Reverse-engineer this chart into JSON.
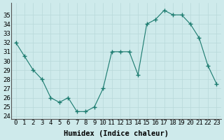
{
  "x": [
    0,
    1,
    2,
    3,
    4,
    5,
    6,
    7,
    8,
    9,
    10,
    11,
    12,
    13,
    14,
    15,
    16,
    17,
    18,
    19,
    20,
    21,
    22,
    23
  ],
  "y": [
    32,
    30.5,
    29,
    28,
    26,
    25.5,
    26,
    24.5,
    24.5,
    25,
    27,
    31,
    31,
    31,
    28.5,
    34,
    34.5,
    35.5,
    35,
    35,
    34,
    32.5,
    29.5,
    27.5
  ],
  "xlabel": "Humidex (Indice chaleur)",
  "ylim": [
    24,
    36
  ],
  "yticks": [
    24,
    25,
    26,
    27,
    28,
    29,
    30,
    31,
    32,
    33,
    34,
    35
  ],
  "xticks": [
    0,
    1,
    2,
    3,
    4,
    5,
    6,
    7,
    8,
    9,
    10,
    11,
    12,
    13,
    14,
    15,
    16,
    17,
    18,
    19,
    20,
    21,
    22,
    23
  ],
  "line_color": "#1a7a6e",
  "marker": "+",
  "marker_size": 4,
  "bg_color": "#ceeaeb",
  "grid_color": "#b8d8d9",
  "tick_label_fontsize": 6.5,
  "xlabel_fontsize": 7.5
}
